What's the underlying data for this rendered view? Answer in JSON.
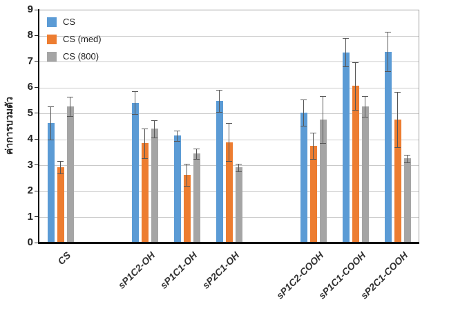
{
  "chart_data": {
    "type": "bar",
    "title": "",
    "ylabel": "ค่าการบวมตัว",
    "xlabel": "",
    "ylim": [
      0,
      9
    ],
    "yticks": [
      0,
      1,
      2,
      3,
      4,
      5,
      6,
      7,
      8,
      9
    ],
    "grid": true,
    "legend_position": "top-left-inside",
    "error_bars": true,
    "categories": [
      "CS",
      "sP1C2-OH",
      "sP1C1-OH",
      "sP2C1-OH",
      "sP1C2-COOH",
      "sP1C1-COOH",
      "sP2C1-COOH"
    ],
    "slot_indices": [
      0,
      2,
      3,
      4,
      6,
      7,
      8
    ],
    "total_slots": 9,
    "series": [
      {
        "name": "CS",
        "color": "#5B9BD5",
        "values": [
          4.65,
          5.43,
          4.16,
          5.5,
          5.05,
          7.38,
          7.4
        ],
        "errors": [
          0.64,
          0.44,
          0.2,
          0.42,
          0.5,
          0.54,
          0.76
        ]
      },
      {
        "name": "CS (med)",
        "color": "#ED7D31",
        "values": [
          2.93,
          3.86,
          2.65,
          3.91,
          3.76,
          6.08,
          4.78
        ],
        "errors": [
          0.24,
          0.58,
          0.43,
          0.74,
          0.5,
          0.93,
          1.08
        ]
      },
      {
        "name": "CS (800)",
        "color": "#A5A5A5",
        "values": [
          5.28,
          4.42,
          3.47,
          2.93,
          4.78,
          5.28,
          3.28
        ],
        "errors": [
          0.37,
          0.33,
          0.2,
          0.14,
          0.9,
          0.4,
          0.15
        ]
      }
    ],
    "colors": {
      "gridline": "#c9c9c9",
      "plot_border": "#9a9a9a",
      "axis": "#0f0f0f",
      "error_bar": "#575757",
      "background": "#ffffff"
    }
  }
}
